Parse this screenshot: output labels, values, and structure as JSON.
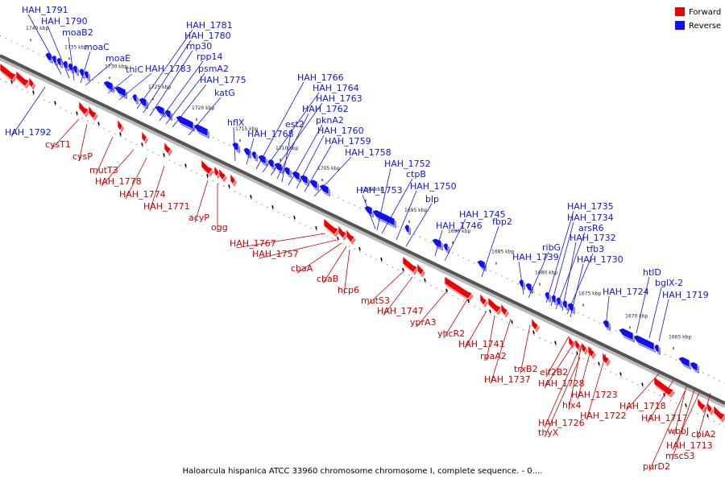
{
  "caption": "Haloarcula hispanica ATCC 33960 chromosome chromosome I, complete sequence. - 0....",
  "legend": [
    {
      "label": "Forward",
      "color": "#ee0000"
    },
    {
      "label": "Reverse",
      "color": "#1111ee"
    }
  ],
  "colors": {
    "forward": "#ee0000",
    "reverse": "#1111ee",
    "backbone": "#555555"
  },
  "ticks": [
    "1740 kbp",
    "1735 kbp",
    "1730 kbp",
    "1725 kbp",
    "1720 kbp",
    "1715 kbp",
    "1710 kbp",
    "1705 kbp",
    "1700 kbp",
    "1695 kbp",
    "1690 kbp",
    "1685 kbp",
    "1680 kbp",
    "1675 kbp",
    "1670 kbp",
    "1665 kbp"
  ],
  "reverse_labels": [
    "HAH_1791",
    "HAH_1790",
    "moaB2",
    "moaC",
    "moaE",
    "thiC",
    "HAH_1783",
    "HAH_1781",
    "HAH_1780",
    "rnp30",
    "rpp14",
    "psmA2",
    "HAH_1775",
    "katG",
    "hflX",
    "HAH_1768",
    "HAH_1766",
    "HAH_1764",
    "HAH_1763",
    "HAH_1762",
    "est2",
    "pknA2",
    "HAH_1760",
    "HAH_1759",
    "HAH_1758",
    "HAH_1753",
    "HAH_1752",
    "ctpB",
    "HAH_1750",
    "blp",
    "HAH_1746",
    "HAH_1745",
    "fbp2",
    "HAH_1739",
    "ribG",
    "HAH_1735",
    "HAH_1734",
    "arsR6",
    "HAH_1732",
    "tfb3",
    "HAH_1730",
    "HAH_1724",
    "htlD",
    "bglX-2",
    "HAH_1719",
    "HAH_1792"
  ],
  "forward_labels": [
    "cysT1",
    "cysP",
    "mutT3",
    "HAH_1778",
    "HAH_1774",
    "HAH_1771",
    "acyP",
    "ogg",
    "HAH_1767",
    "HAH_1757",
    "cbaA",
    "cbaB",
    "hcp6",
    "mutS3",
    "HAH_1747",
    "yprA3",
    "yhcR2",
    "HAH_1741",
    "rpaA2",
    "HAH_1737",
    "trxB2",
    "eif2B2",
    "HAH_1728",
    "HAH_1723",
    "hlx4",
    "HAH_1722",
    "HAH_1726",
    "thyX",
    "HAH_1718",
    "HAH_1717",
    "wbbJ",
    "mscS3",
    "HAH_1713",
    "cbiA2",
    "purD2"
  ]
}
